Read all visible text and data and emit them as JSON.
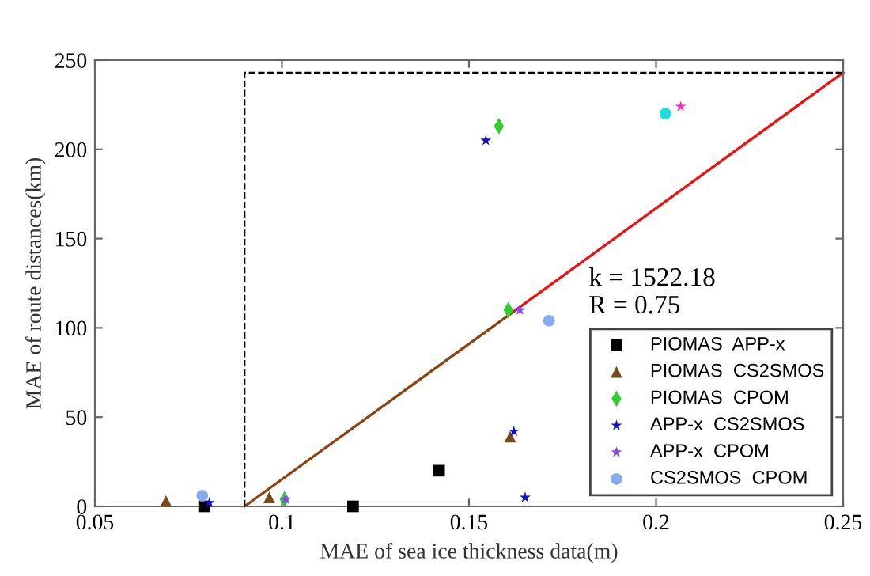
{
  "chart_data": {
    "type": "scatter",
    "xlabel": "MAE of sea ice thickness data(m)",
    "ylabel": "MAE of route distances(km)",
    "xlim": [
      0.05,
      0.25
    ],
    "xticks": [
      0.05,
      0.1,
      0.15,
      0.2,
      0.25
    ],
    "ylim": [
      0,
      250
    ],
    "yticks": [
      0,
      50,
      100,
      150,
      200,
      250
    ],
    "grid": false,
    "legend": "bottom right",
    "annotations": [
      "k = 1522.18\nR = 0.75"
    ],
    "series": [
      {
        "name": "PIOMAS  APP-x",
        "color": "#000000",
        "marker": "square",
        "x": [
          0.0792,
          0.119,
          0.142
        ],
        "values": [
          0,
          0,
          20
        ]
      },
      {
        "name": "PIOMAS  CS2SMOS",
        "color": "#7a4a1a",
        "marker": "triangle",
        "x": [
          0.069,
          0.0966,
          0.161
        ],
        "values": [
          3,
          5,
          39
        ]
      },
      {
        "name": "PIOMAS  CPOM",
        "color": "#33cc33",
        "marker": "diamond",
        "x": [
          0.1007,
          0.1605,
          0.158
        ],
        "values": [
          4,
          110,
          213
        ]
      },
      {
        "name": "APP-x  CS2SMOS",
        "color": "#1010cc",
        "marker": "star",
        "x": [
          0.0806,
          0.162,
          0.165,
          0.1545
        ],
        "values": [
          2,
          42,
          5,
          205
        ]
      },
      {
        "name": "APP-x  CPOM",
        "color": "#8844ee",
        "marker": "star",
        "x": [
          0.101,
          0.1636,
          0.2066
        ],
        "values": [
          4,
          110,
          224
        ],
        "colors": [
          "#8844ee",
          "#8844ee",
          "#ee33cc"
        ]
      },
      {
        "name": "CS2SMOS  CPOM",
        "color": "#88aaee",
        "marker": "circle",
        "x": [
          0.0787,
          0.1714,
          0.2025
        ],
        "values": [
          6,
          104,
          220
        ],
        "colors": [
          "#88aaee",
          "#88aaee",
          "#22dddd"
        ]
      },
      {
        "type": "line",
        "color": "#8b4513",
        "line_style": "solid",
        "x": [
          0.09,
          0.1625
        ],
        "values": [
          0,
          110
        ]
      },
      {
        "type": "line",
        "color": "#ee1111",
        "line_style": "solid",
        "x": [
          0.1625,
          0.25
        ],
        "values": [
          110,
          243
        ]
      },
      {
        "type": "line",
        "color": "#000000",
        "line_style": "dashed",
        "x": [
          0.09,
          0.09,
          0.25
        ],
        "values": [
          0,
          243,
          243
        ]
      }
    ]
  }
}
